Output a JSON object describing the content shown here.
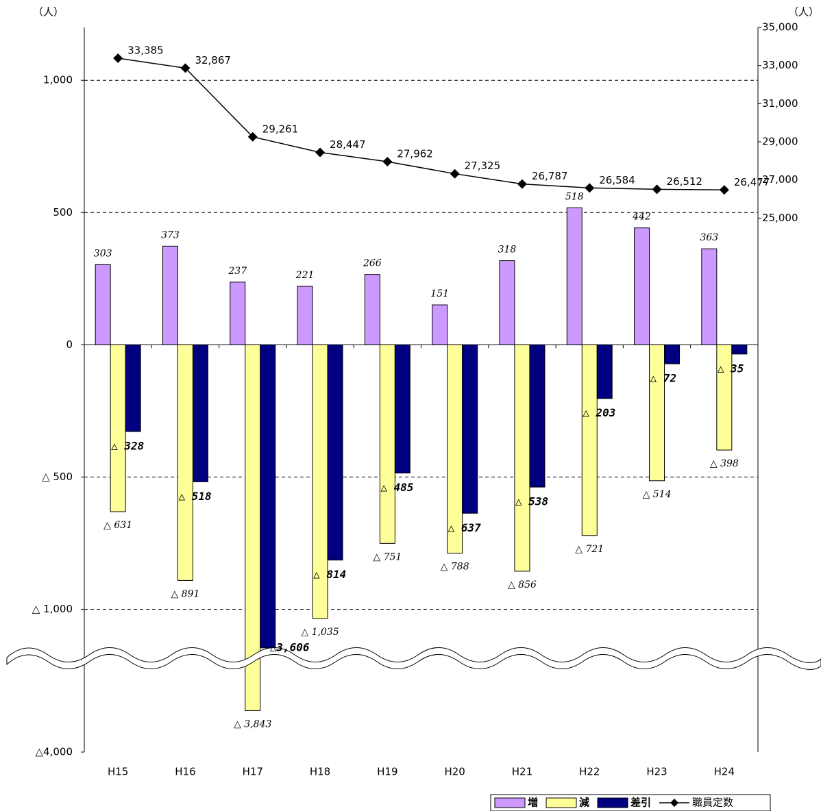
{
  "chart_data": {
    "type": "bar-line",
    "y_label": "（人）",
    "y2_label": "（人）",
    "categories": [
      "H15",
      "H16",
      "H17",
      "H18",
      "H19",
      "H20",
      "H21",
      "H22",
      "H23",
      "H24"
    ],
    "series": [
      {
        "name": "増",
        "type": "bar",
        "color": "#cc99ff",
        "values": [
          303,
          373,
          237,
          221,
          266,
          151,
          318,
          518,
          442,
          363
        ]
      },
      {
        "name": "減",
        "type": "bar",
        "color": "#ffff99",
        "values": [
          -631,
          -891,
          -3843,
          -1035,
          -751,
          -788,
          -856,
          -721,
          -514,
          -398
        ],
        "value_labels": [
          "△ 631",
          "△ 891",
          "△ 3,843",
          "△ 1,035",
          "△ 751",
          "△ 788",
          "△ 856",
          "△ 721",
          "△ 514",
          "△ 398"
        ]
      },
      {
        "name": "差引",
        "type": "bar",
        "color": "#000080",
        "values": [
          -328,
          -518,
          -3606,
          -814,
          -485,
          -637,
          -538,
          -203,
          -72,
          -35
        ],
        "value_labels": [
          "△ 328",
          "△ 518",
          "△3,606",
          "△ 814",
          "△ 485",
          "△ 637",
          "△ 538",
          "△ 203",
          "△ 72",
          "△ 35"
        ]
      },
      {
        "name": "職員定数",
        "type": "line",
        "axis": "y2",
        "color": "#000000",
        "values": [
          33385,
          32867,
          29261,
          28447,
          27962,
          27325,
          26787,
          26584,
          26512,
          26477
        ],
        "value_labels": [
          "33,385",
          "32,867",
          "29,261",
          "28,447",
          "27,962",
          "27,325",
          "26,787",
          "26,584",
          "26,512",
          "26,477"
        ]
      }
    ],
    "ylim": [
      -4000,
      1200
    ],
    "ybreak": [
      -1100,
      -3560
    ],
    "yticks": [
      {
        "value": 1000,
        "label": "1,000"
      },
      500,
      0,
      {
        "value": -500,
        "label": "△ 500"
      },
      {
        "value": -1000,
        "label": "△ 1,000"
      },
      {
        "value": -4000,
        "label": "△4,000"
      }
    ],
    "y2lim": [
      -3000,
      35000
    ],
    "y2ticks": [
      {
        "value": 25000,
        "label": "25,000"
      },
      {
        "value": 27000,
        "label": "27,000"
      },
      {
        "value": 29000,
        "label": "29,000"
      },
      {
        "value": 31000,
        "label": "31,000"
      },
      {
        "value": 33000,
        "label": "33,000"
      },
      {
        "value": 35000,
        "label": "35,000"
      }
    ],
    "grid": true,
    "legend": "bottom-right"
  }
}
